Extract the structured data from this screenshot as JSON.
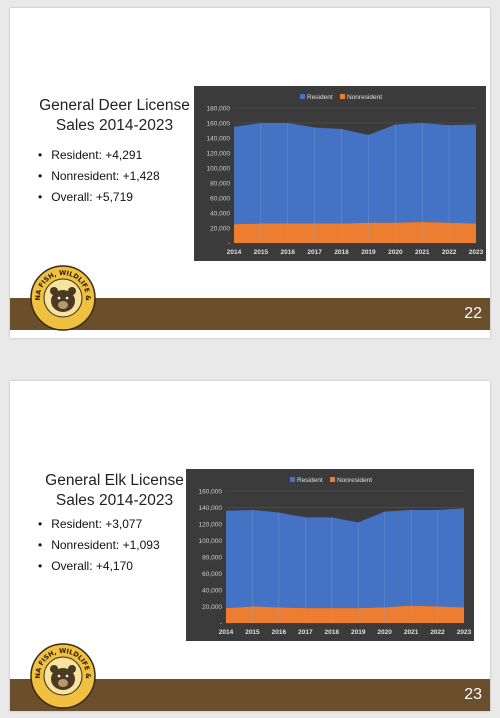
{
  "slides": [
    {
      "title": "General Deer License Sales 2014-2023",
      "bullets": [
        "Resident: +4,291",
        "Nonresident: +1,428",
        "Overall: +5,719"
      ],
      "page_number": "22",
      "logo": {
        "text": "MONTANA FISH, WILDLIFE & PARKS",
        "icon": "bear-icon"
      }
    },
    {
      "title": "General Elk License Sales 2014-2023",
      "bullets": [
        "Resident: +3,077",
        "Nonresident: +1,093",
        "Overall: +4,170"
      ],
      "page_number": "23",
      "logo": {
        "text": "MONTANA FISH, WILDLIFE & PARKS",
        "icon": "bear-icon"
      }
    }
  ],
  "chart_data": [
    {
      "type": "area",
      "stacked": true,
      "categories": [
        "2014",
        "2015",
        "2016",
        "2017",
        "2018",
        "2019",
        "2020",
        "2021",
        "2022",
        "2023"
      ],
      "series": [
        {
          "name": "Resident",
          "color": "#4472c4",
          "values": [
            130000,
            134000,
            134000,
            128000,
            126000,
            117000,
            131000,
            132000,
            130000,
            132000
          ]
        },
        {
          "name": "Nonresident",
          "color": "#ed7d31",
          "values": [
            25000,
            26000,
            26000,
            26000,
            26000,
            27000,
            27000,
            28000,
            27000,
            26000
          ]
        }
      ],
      "yticks": [
        "180,000",
        "160,000",
        "140,000",
        "120,000",
        "100,000",
        "80,000",
        "60,000",
        "40,000",
        "20,000",
        "-"
      ],
      "ylim": [
        0,
        180000
      ],
      "legend": "top",
      "grid": true
    },
    {
      "type": "area",
      "stacked": true,
      "categories": [
        "2014",
        "2015",
        "2016",
        "2017",
        "2018",
        "2019",
        "2020",
        "2021",
        "2022",
        "2023"
      ],
      "series": [
        {
          "name": "Resident",
          "color": "#4472c4",
          "values": [
            118000,
            117000,
            115000,
            110000,
            110000,
            104000,
            116000,
            116000,
            117000,
            120000
          ]
        },
        {
          "name": "Nonresident",
          "color": "#ed7d31",
          "values": [
            18000,
            20000,
            19000,
            18000,
            18000,
            18000,
            19000,
            21000,
            20000,
            19000
          ]
        }
      ],
      "yticks": [
        "160,000",
        "140,000",
        "120,000",
        "100,000",
        "80,000",
        "60,000",
        "40,000",
        "20,000",
        "-"
      ],
      "ylim": [
        0,
        160000
      ],
      "legend": "top",
      "grid": true
    }
  ]
}
